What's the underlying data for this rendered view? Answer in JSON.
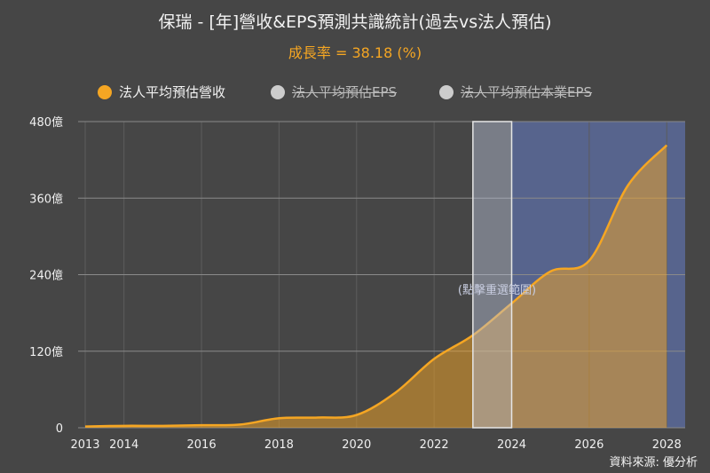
{
  "title": "保瑞 - [年]營收&EPS預測共識統計(過去vs法人預估)",
  "subtitle": "成長率 = 38.18 (%)",
  "source": "資料來源: 優分析",
  "zoom_hint": "(點擊重選範圍)",
  "legend": [
    {
      "label": "法人平均預估營收",
      "color": "#f5a623",
      "active": true
    },
    {
      "label": "法人平均預估EPS",
      "color": "#cccccc",
      "active": false
    },
    {
      "label": "法人平均預估本業EPS",
      "color": "#cccccc",
      "active": false
    }
  ],
  "colors": {
    "series": "#f5a623",
    "forecast_band": "#5a6a9a",
    "selection": "#b9c2d6"
  },
  "chart_data": {
    "type": "area",
    "title": "保瑞 - [年]營收&EPS預測共識統計(過去vs法人預估)",
    "xlabel": "",
    "ylabel": "",
    "x_ticks": [
      2013,
      2014,
      2016,
      2018,
      2020,
      2022,
      2024,
      2026,
      2028
    ],
    "x_range": [
      2013,
      2028.5
    ],
    "y_ticks": [
      0,
      120,
      240,
      360,
      480
    ],
    "y_tick_labels": [
      "0",
      "120億",
      "240億",
      "360億",
      "480億"
    ],
    "ylim": [
      0,
      480
    ],
    "grid": true,
    "legend_position": "top",
    "forecast_range": [
      2024,
      2028.5
    ],
    "selection_range": [
      2023,
      2024
    ],
    "series": [
      {
        "name": "法人平均預估營收",
        "x": [
          2013,
          2014,
          2015,
          2016,
          2017,
          2018,
          2019,
          2020,
          2021,
          2022,
          2023,
          2024,
          2025,
          2026,
          2027,
          2028
        ],
        "values": [
          2,
          3,
          3,
          4,
          5,
          15,
          16,
          20,
          55,
          108,
          145,
          195,
          245,
          262,
          380,
          443
        ]
      }
    ]
  }
}
